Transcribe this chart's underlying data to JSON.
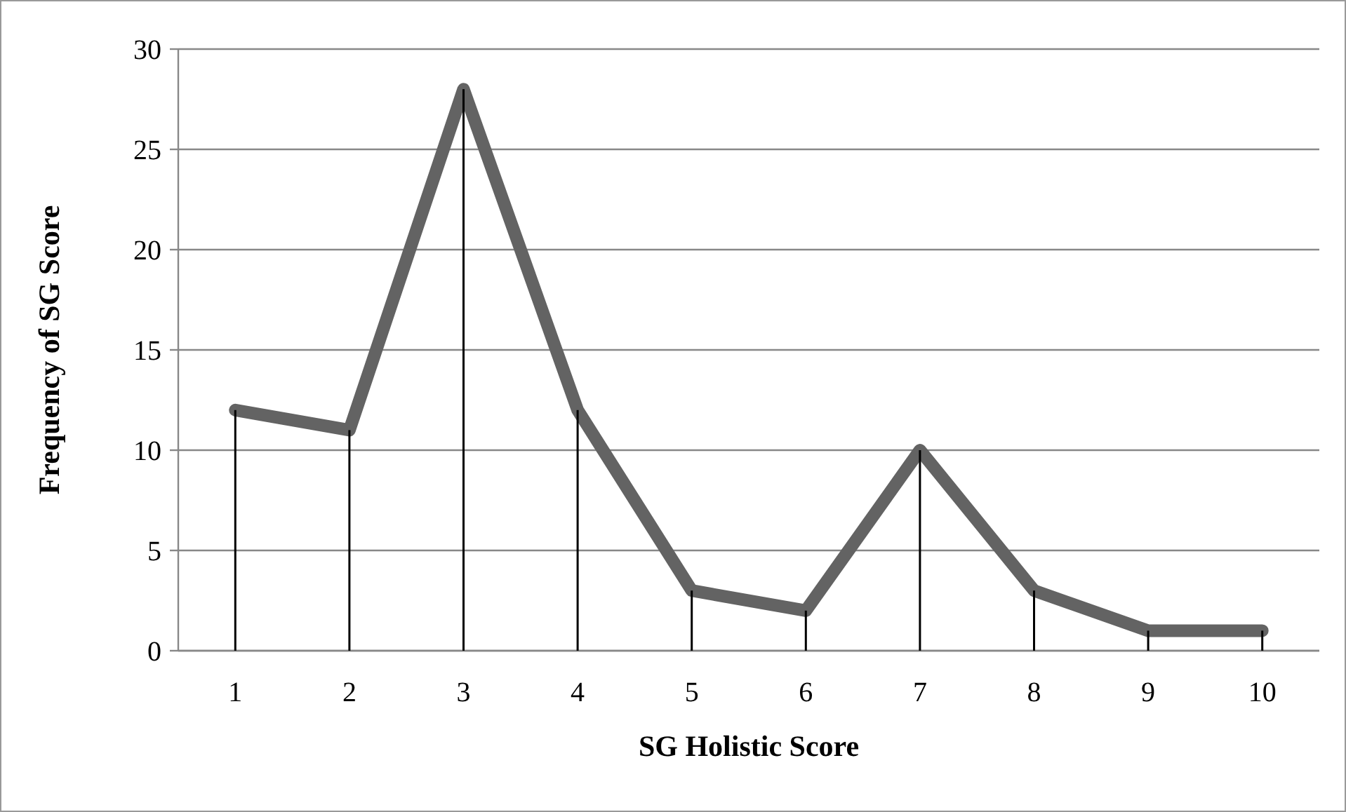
{
  "chart_data": {
    "type": "line",
    "xlabel": "SG Holistic Score",
    "ylabel": "Frequency of SG Score",
    "categories": [
      "1",
      "2",
      "3",
      "4",
      "5",
      "6",
      "7",
      "8",
      "9",
      "10"
    ],
    "series": [
      {
        "color": "#636363",
        "values": [
          12,
          11,
          28,
          12,
          3,
          2,
          10,
          3,
          1,
          1
        ]
      },
      {
        "type": "bar",
        "color": "#000000",
        "values": [
          12,
          11,
          28,
          12,
          3,
          2,
          10,
          3,
          1,
          1
        ]
      }
    ],
    "ylim": [
      0,
      30
    ],
    "yticks": [
      0,
      5,
      10,
      15,
      20,
      25,
      30
    ],
    "grid": "y",
    "marker": "none",
    "line_style": "solid"
  }
}
